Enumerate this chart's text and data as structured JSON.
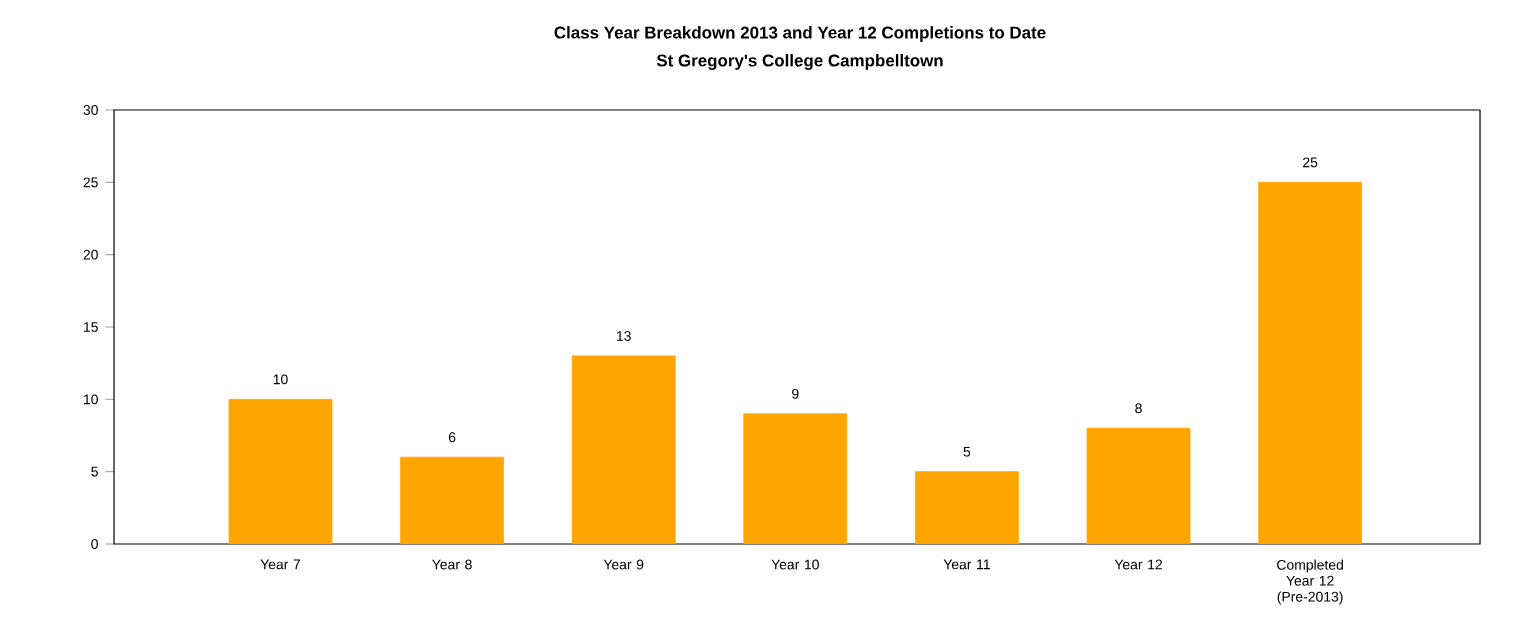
{
  "chart_data": {
    "type": "bar",
    "title": "Class Year Breakdown 2013 and Year 12 Completions to Date",
    "subtitle": "St Gregory's College Campbelltown",
    "categories": [
      "Year 7",
      "Year 8",
      "Year 9",
      "Year 10",
      "Year 11",
      "Year 12",
      "Completed Year 12 (Pre-2013)"
    ],
    "values": [
      10,
      6,
      13,
      9,
      5,
      8,
      25
    ],
    "color": "#ffa500",
    "data_labels": true,
    "ylim": [
      0,
      30
    ],
    "yticks": [
      0,
      5,
      10,
      15,
      20,
      25,
      30
    ],
    "grid": false
  }
}
